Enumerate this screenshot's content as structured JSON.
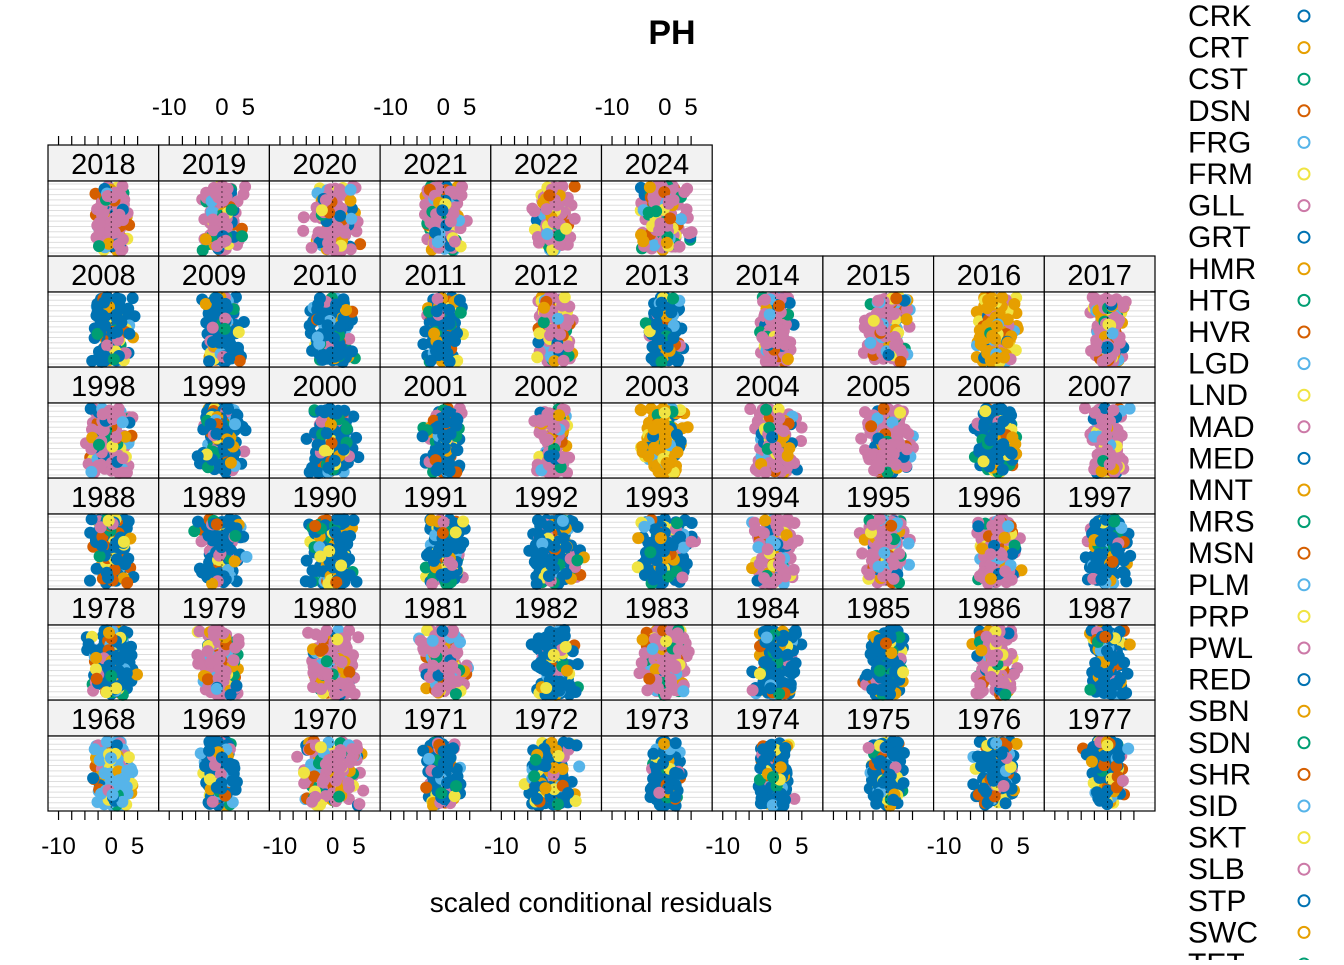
{
  "chart_data": {
    "type": "scatter",
    "title": "PH",
    "xlabel": "scaled conditional residuals",
    "ylabel": "",
    "xlim": [
      -12,
      9
    ],
    "x_ticks": [
      {
        "value": -10,
        "label": "-10"
      },
      {
        "value": 0,
        "label": "0"
      },
      {
        "value": 5,
        "label": "5"
      }
    ],
    "grid": true,
    "legend_position": "right",
    "panels": [
      {
        "year": "1968",
        "center": 0.5,
        "spread": 2.6,
        "dominant": 4
      },
      {
        "year": "1969",
        "center": -0.5,
        "spread": 2.0,
        "dominant": 0
      },
      {
        "year": "1970",
        "center": 0,
        "spread": 3.8,
        "dominant": 6
      },
      {
        "year": "1971",
        "center": -0.5,
        "spread": 2.2,
        "dominant": 0
      },
      {
        "year": "1972",
        "center": -0.5,
        "spread": 3.0,
        "dominant": 0
      },
      {
        "year": "1973",
        "center": 0,
        "spread": 2.0,
        "dominant": 0
      },
      {
        "year": "1974",
        "center": 0,
        "spread": 2.0,
        "dominant": 0
      },
      {
        "year": "1975",
        "center": 0,
        "spread": 2.2,
        "dominant": 0
      },
      {
        "year": "1976",
        "center": 0,
        "spread": 2.6,
        "dominant": 0
      },
      {
        "year": "1977",
        "center": 0,
        "spread": 2.4,
        "dominant": 0
      },
      {
        "year": "1978",
        "center": 0,
        "spread": 2.6,
        "dominant": 0
      },
      {
        "year": "1979",
        "center": -0.5,
        "spread": 2.4,
        "dominant": 6
      },
      {
        "year": "1980",
        "center": 0,
        "spread": 2.8,
        "dominant": 6
      },
      {
        "year": "1981",
        "center": 0,
        "spread": 3.0,
        "dominant": 6
      },
      {
        "year": "1982",
        "center": 0,
        "spread": 2.4,
        "dominant": 0
      },
      {
        "year": "1983",
        "center": 0,
        "spread": 2.8,
        "dominant": 6
      },
      {
        "year": "1984",
        "center": 0,
        "spread": 2.6,
        "dominant": 0
      },
      {
        "year": "1985",
        "center": 0,
        "spread": 2.4,
        "dominant": 0
      },
      {
        "year": "1986",
        "center": 0,
        "spread": 2.6,
        "dominant": 6
      },
      {
        "year": "1987",
        "center": 0,
        "spread": 2.4,
        "dominant": 0
      },
      {
        "year": "1988",
        "center": 0,
        "spread": 2.4,
        "dominant": 0
      },
      {
        "year": "1989",
        "center": 0,
        "spread": 2.6,
        "dominant": 0
      },
      {
        "year": "1990",
        "center": 0,
        "spread": 2.8,
        "dominant": 0
      },
      {
        "year": "1991",
        "center": 0,
        "spread": 2.4,
        "dominant": 0
      },
      {
        "year": "1992",
        "center": 0,
        "spread": 3.0,
        "dominant": 0
      },
      {
        "year": "1993",
        "center": 0,
        "spread": 3.0,
        "dominant": 0
      },
      {
        "year": "1994",
        "center": 0,
        "spread": 2.6,
        "dominant": 6
      },
      {
        "year": "1995",
        "center": 0,
        "spread": 2.8,
        "dominant": 6
      },
      {
        "year": "1996",
        "center": 0,
        "spread": 2.6,
        "dominant": 6
      },
      {
        "year": "1997",
        "center": 0,
        "spread": 2.4,
        "dominant": 0
      },
      {
        "year": "1998",
        "center": 0,
        "spread": 2.6,
        "dominant": 6
      },
      {
        "year": "1999",
        "center": 0,
        "spread": 2.4,
        "dominant": 0
      },
      {
        "year": "2000",
        "center": 0,
        "spread": 2.6,
        "dominant": 0
      },
      {
        "year": "2001",
        "center": 0,
        "spread": 2.0,
        "dominant": 0
      },
      {
        "year": "2002",
        "center": 0,
        "spread": 2.2,
        "dominant": 6
      },
      {
        "year": "2003",
        "center": -0.5,
        "spread": 2.6,
        "dominant": 1
      },
      {
        "year": "2004",
        "center": 0,
        "spread": 2.6,
        "dominant": 6
      },
      {
        "year": "2005",
        "center": 0,
        "spread": 2.8,
        "dominant": 6
      },
      {
        "year": "2006",
        "center": 0,
        "spread": 2.4,
        "dominant": 0
      },
      {
        "year": "2007",
        "center": 0,
        "spread": 2.2,
        "dominant": 6
      },
      {
        "year": "2008",
        "center": 0,
        "spread": 2.6,
        "dominant": 0
      },
      {
        "year": "2009",
        "center": 0,
        "spread": 2.4,
        "dominant": 0
      },
      {
        "year": "2010",
        "center": 0,
        "spread": 2.6,
        "dominant": 0
      },
      {
        "year": "2011",
        "center": 0,
        "spread": 2.0,
        "dominant": 0
      },
      {
        "year": "2012",
        "center": 0,
        "spread": 2.0,
        "dominant": 6
      },
      {
        "year": "2013",
        "center": 0,
        "spread": 2.0,
        "dominant": 0
      },
      {
        "year": "2014",
        "center": 0,
        "spread": 2.2,
        "dominant": 6
      },
      {
        "year": "2015",
        "center": 0,
        "spread": 2.8,
        "dominant": 6
      },
      {
        "year": "2016",
        "center": 0,
        "spread": 2.4,
        "dominant": 1
      },
      {
        "year": "2017",
        "center": 0,
        "spread": 2.2,
        "dominant": 6
      },
      {
        "year": "2018",
        "center": 0,
        "spread": 2.2,
        "dominant": 6
      },
      {
        "year": "2019",
        "center": 0,
        "spread": 2.4,
        "dominant": 6
      },
      {
        "year": "2020",
        "center": 0,
        "spread": 3.0,
        "dominant": 6
      },
      {
        "year": "2021",
        "center": 0,
        "spread": 2.4,
        "dominant": 6
      },
      {
        "year": "2022",
        "center": 0,
        "spread": 2.2,
        "dominant": 6
      },
      {
        "year": "2024",
        "center": 0,
        "spread": 3.2,
        "dominant": 6
      }
    ],
    "legend": [
      {
        "label": "CRK",
        "color": "#0072B2"
      },
      {
        "label": "CRT",
        "color": "#E69F00"
      },
      {
        "label": "CST",
        "color": "#009E73"
      },
      {
        "label": "DSN",
        "color": "#D55E00"
      },
      {
        "label": "FRG",
        "color": "#56B4E9"
      },
      {
        "label": "FRM",
        "color": "#F0E442"
      },
      {
        "label": "GLL",
        "color": "#CC79A7"
      },
      {
        "label": "GRT",
        "color": "#0072B2"
      },
      {
        "label": "HMR",
        "color": "#E69F00"
      },
      {
        "label": "HTG",
        "color": "#009E73"
      },
      {
        "label": "HVR",
        "color": "#D55E00"
      },
      {
        "label": "LGD",
        "color": "#56B4E9"
      },
      {
        "label": "LND",
        "color": "#F0E442"
      },
      {
        "label": "MAD",
        "color": "#CC79A7"
      },
      {
        "label": "MED",
        "color": "#0072B2"
      },
      {
        "label": "MNT",
        "color": "#E69F00"
      },
      {
        "label": "MRS",
        "color": "#009E73"
      },
      {
        "label": "MSN",
        "color": "#D55E00"
      },
      {
        "label": "PLM",
        "color": "#56B4E9"
      },
      {
        "label": "PRP",
        "color": "#F0E442"
      },
      {
        "label": "PWL",
        "color": "#CC79A7"
      },
      {
        "label": "RED",
        "color": "#0072B2"
      },
      {
        "label": "SBN",
        "color": "#E69F00"
      },
      {
        "label": "SDN",
        "color": "#009E73"
      },
      {
        "label": "SHR",
        "color": "#D55E00"
      },
      {
        "label": "SID",
        "color": "#56B4E9"
      },
      {
        "label": "SKT",
        "color": "#F0E442"
      },
      {
        "label": "SLB",
        "color": "#CC79A7"
      },
      {
        "label": "STP",
        "color": "#0072B2"
      },
      {
        "label": "SWC",
        "color": "#E69F00"
      },
      {
        "label": "TET",
        "color": "#009E73"
      }
    ],
    "palette": [
      "#0072B2",
      "#E69F00",
      "#009E73",
      "#D55E00",
      "#56B4E9",
      "#F0E442",
      "#CC79A7"
    ]
  }
}
